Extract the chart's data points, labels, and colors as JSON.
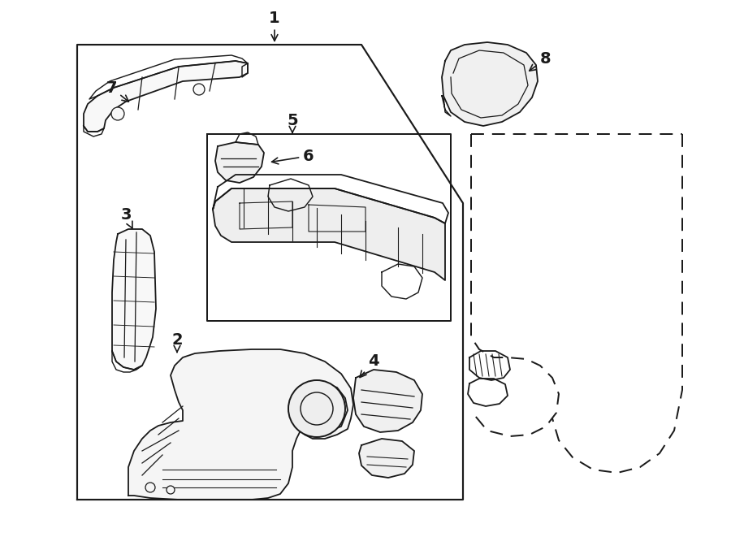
{
  "bg_color": "#ffffff",
  "line_color": "#1a1a1a",
  "line_width": 1.3,
  "figure_size": [
    9.0,
    6.61
  ],
  "dpi": 100,
  "font_size_labels": 14
}
